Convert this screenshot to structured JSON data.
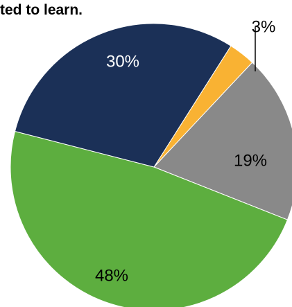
{
  "title": "ted to learn.",
  "chart_data": {
    "type": "pie",
    "start_angle_deg": -57.6,
    "direction": "clockwise",
    "slices": [
      {
        "label": "3%",
        "value": 3,
        "color": "#F9B233",
        "label_color": "#000000"
      },
      {
        "label": "19%",
        "value": 19,
        "color": "#898989",
        "label_color": "#000000"
      },
      {
        "label": "48%",
        "value": 48,
        "color": "#5DAE3F",
        "label_color": "#000000"
      },
      {
        "label": "30%",
        "value": 30,
        "color": "#1B3057",
        "label_color": "#FFFFFF"
      }
    ]
  }
}
